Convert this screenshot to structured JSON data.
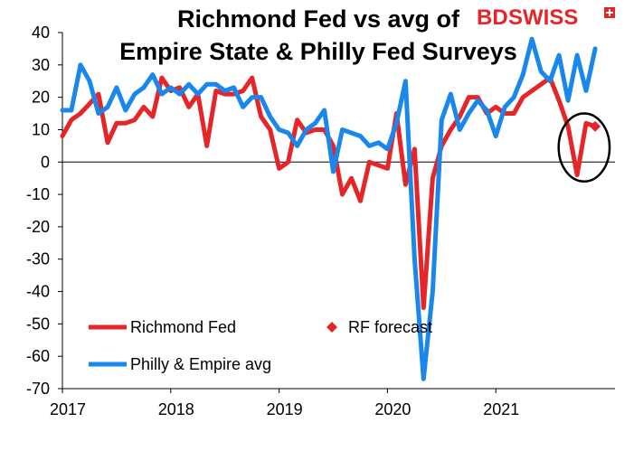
{
  "chart_data": {
    "type": "line",
    "title_lines": [
      "Richmond Fed vs avg of",
      "Empire State & Philly Fed Surveys"
    ],
    "xlabel": "",
    "ylabel": "",
    "ylim": [
      -70,
      40
    ],
    "yticks": [
      40,
      30,
      20,
      10,
      0,
      -10,
      -20,
      -30,
      -40,
      -50,
      -60,
      -70
    ],
    "xlim": [
      2017,
      2022.1
    ],
    "xticks": [
      {
        "value": 2017,
        "label": "2017"
      },
      {
        "value": 2018,
        "label": "2018"
      },
      {
        "value": 2019,
        "label": "2019"
      },
      {
        "value": 2020,
        "label": "2020"
      },
      {
        "value": 2021,
        "label": "2021"
      }
    ],
    "grid": false,
    "legend_position": "bottom-left",
    "series": [
      {
        "name": "Richmond Fed",
        "kind": "line",
        "color": "#e52528",
        "x": [
          2017.0,
          2017.083,
          2017.167,
          2017.25,
          2017.333,
          2017.417,
          2017.5,
          2017.583,
          2017.667,
          2017.75,
          2017.833,
          2017.917,
          2018.0,
          2018.083,
          2018.167,
          2018.25,
          2018.333,
          2018.417,
          2018.5,
          2018.583,
          2018.667,
          2018.75,
          2018.833,
          2018.917,
          2019.0,
          2019.083,
          2019.167,
          2019.25,
          2019.333,
          2019.417,
          2019.5,
          2019.583,
          2019.667,
          2019.75,
          2019.833,
          2019.917,
          2020.0,
          2020.083,
          2020.167,
          2020.25,
          2020.333,
          2020.417,
          2020.5,
          2020.583,
          2020.667,
          2020.75,
          2020.833,
          2020.917,
          2021.0,
          2021.083,
          2021.167,
          2021.25,
          2021.333,
          2021.417,
          2021.5,
          2021.583,
          2021.667,
          2021.75,
          2021.833
        ],
        "y": [
          8,
          13,
          15,
          18,
          21,
          6,
          12,
          12,
          13,
          17,
          14,
          26,
          22,
          23,
          17,
          21,
          5,
          22,
          21,
          21,
          22,
          26,
          14,
          10,
          -2,
          0,
          13,
          9,
          10,
          10,
          5,
          -10,
          -5,
          -12,
          0,
          -1,
          -2,
          15,
          -7,
          4,
          -45,
          -5,
          5,
          10,
          14,
          20,
          20,
          15,
          17,
          15,
          15,
          20,
          22,
          24,
          26,
          19,
          11,
          -4,
          12
        ],
        "last_point": {
          "x": 2021.917,
          "y": 11
        }
      },
      {
        "name": "RF forecast",
        "kind": "marker",
        "marker": "diamond",
        "color": "#e52528",
        "x": [
          2021.917
        ],
        "y": [
          11
        ]
      },
      {
        "name": "Philly & Empire avg",
        "kind": "line",
        "color": "#1a87ec",
        "x": [
          2017.0,
          2017.083,
          2017.167,
          2017.25,
          2017.333,
          2017.417,
          2017.5,
          2017.583,
          2017.667,
          2017.75,
          2017.833,
          2017.917,
          2018.0,
          2018.083,
          2018.167,
          2018.25,
          2018.333,
          2018.417,
          2018.5,
          2018.583,
          2018.667,
          2018.75,
          2018.833,
          2018.917,
          2019.0,
          2019.083,
          2019.167,
          2019.25,
          2019.333,
          2019.417,
          2019.5,
          2019.583,
          2019.667,
          2019.75,
          2019.833,
          2019.917,
          2020.0,
          2020.083,
          2020.167,
          2020.25,
          2020.333,
          2020.417,
          2020.5,
          2020.583,
          2020.667,
          2020.75,
          2020.833,
          2020.917,
          2021.0,
          2021.083,
          2021.167,
          2021.25,
          2021.333,
          2021.417,
          2021.5,
          2021.583,
          2021.667,
          2021.75,
          2021.833,
          2021.917
        ],
        "y": [
          16,
          16,
          30,
          25,
          15,
          17,
          23,
          16,
          21,
          23,
          27,
          21,
          23,
          21,
          24,
          21,
          24,
          24,
          22,
          23,
          17,
          20,
          20,
          14,
          10,
          9,
          5,
          10,
          12,
          16,
          -3,
          10,
          9,
          8,
          5,
          6,
          4,
          12,
          25,
          -30,
          -67,
          -40,
          13,
          21,
          10,
          15,
          19,
          16,
          8,
          17,
          20,
          27,
          38,
          28,
          25,
          33,
          19,
          33,
          22,
          35
        ]
      }
    ],
    "annotation": {
      "type": "ellipse",
      "around_series": "RF forecast",
      "x_range": [
        2021.58,
        2022.05
      ],
      "y_range": [
        -6,
        15
      ]
    }
  },
  "logo": {
    "text_left": "BD",
    "text_right": "SWISS",
    "color": "#e52528",
    "icon": "swiss-cross-icon"
  }
}
